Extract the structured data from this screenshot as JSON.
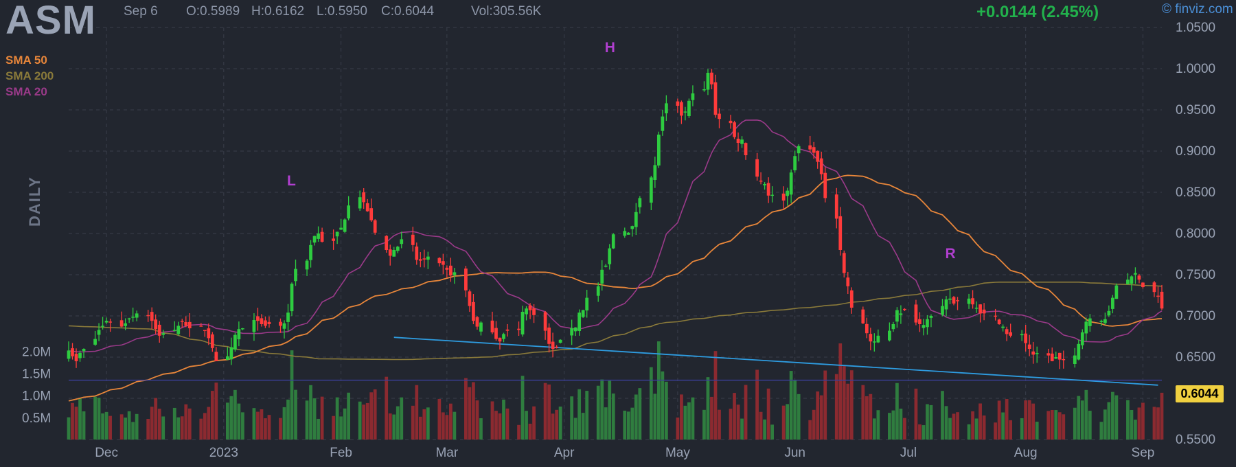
{
  "header": {
    "ticker": "ASM",
    "date": "Sep 6",
    "open": "O:0.5989",
    "high": "H:0.6162",
    "low": "L:0.5950",
    "close": "C:0.6044",
    "volume": "Vol:305.56K",
    "change": "+0.0144 (2.45%)",
    "credit": "© finviz.com"
  },
  "period_label": "DAILY",
  "last_price_label": "0.6044",
  "legend": [
    {
      "label": "SMA 50",
      "color": "#e8863a"
    },
    {
      "label": "SMA 200",
      "color": "#8a7a3a"
    },
    {
      "label": "SMA 20",
      "color": "#9b3a8a"
    }
  ],
  "colors": {
    "up": "#2ecc40",
    "down": "#ff3b3b",
    "vol_up": "#2f7d3f",
    "vol_down": "#8c2a30",
    "trendline": "#2e9ce0",
    "neckline": "#3b3f9a"
  },
  "chart_data": {
    "type": "candlestick",
    "x_axis_labels": [
      "Dec",
      "2023",
      "Feb",
      "Mar",
      "Apr",
      "May",
      "Jun",
      "Jul",
      "Aug",
      "Sep"
    ],
    "y_axis_labels": [
      "1.0500",
      "1.0000",
      "0.9500",
      "0.9000",
      "0.8500",
      "0.8000",
      "0.7500",
      "0.7000",
      "0.6500",
      "0.6000",
      "0.5500"
    ],
    "volume_axis_labels": [
      "2.0M",
      "1.5M",
      "1.0M",
      "0.5M"
    ],
    "ylim": [
      0.55,
      1.05
    ],
    "volume_lim": [
      0,
      2.8
    ],
    "date_range": [
      "2022-11-21",
      "2023-09-06"
    ],
    "closes": [
      0.658,
      0.651,
      0.645,
      0.655,
      0.66,
      0.672,
      0.683,
      0.688,
      0.694,
      0.692,
      0.687,
      0.691,
      0.697,
      0.699,
      0.703,
      0.7,
      0.694,
      0.684,
      0.676,
      0.679,
      0.683,
      0.688,
      0.693,
      0.688,
      0.685,
      0.688,
      0.682,
      0.673,
      0.661,
      0.645,
      0.651,
      0.662,
      0.677,
      0.684,
      0.685,
      0.695,
      0.694,
      0.69,
      0.688,
      0.69,
      0.688,
      0.691,
      0.704,
      0.739,
      0.757,
      0.767,
      0.786,
      0.797,
      0.8,
      0.79,
      0.791,
      0.802,
      0.807,
      0.817,
      0.834,
      0.844,
      0.838,
      0.827,
      0.816,
      0.801,
      0.78,
      0.773,
      0.78,
      0.784,
      0.793,
      0.786,
      0.768,
      0.767,
      0.769,
      0.772,
      0.764,
      0.762,
      0.756,
      0.749,
      0.753,
      0.731,
      0.712,
      0.694,
      0.687,
      0.692,
      0.68,
      0.672,
      0.669,
      0.678,
      0.682,
      0.683,
      0.705,
      0.709,
      0.707,
      0.701,
      0.682,
      0.666,
      0.66,
      0.662,
      0.671,
      0.685,
      0.686,
      0.704,
      0.707,
      0.722,
      0.736,
      0.756,
      0.761,
      0.782,
      0.799,
      0.803,
      0.801,
      0.809,
      0.826,
      0.843,
      0.868,
      0.883,
      0.92,
      0.942,
      0.958,
      0.955,
      0.943,
      0.948,
      0.961,
      0.97,
      0.975,
      0.995,
      0.981,
      0.944,
      0.939,
      0.934,
      0.917,
      0.91,
      0.914,
      0.895,
      0.869,
      0.863,
      0.86,
      0.846,
      0.847,
      0.84,
      0.852,
      0.874,
      0.894,
      0.906,
      0.902,
      0.898,
      0.887,
      0.872,
      0.843,
      0.818,
      0.78,
      0.752,
      0.736,
      0.71,
      0.691,
      0.679,
      0.669,
      0.669,
      0.676,
      0.682,
      0.69,
      0.707,
      0.703,
      0.708,
      0.692,
      0.69,
      0.689,
      0.696,
      0.7,
      0.712,
      0.72,
      0.721,
      0.715,
      0.719,
      0.721,
      0.714,
      0.71,
      0.703,
      0.703,
      0.7,
      0.69,
      0.687,
      0.678,
      0.676,
      0.678,
      0.667,
      0.66,
      0.653,
      0.655,
      0.652,
      0.645,
      0.65,
      0.647,
      0.647,
      0.652,
      0.666,
      0.68,
      0.693,
      0.697,
      0.694,
      0.696,
      0.706,
      0.722,
      0.737,
      0.744,
      0.748,
      0.752,
      0.744,
      0.735,
      0.729,
      0.724,
      0.709,
      0.695,
      0.692,
      0.688,
      0.697,
      0.707,
      0.723,
      0.727,
      0.728,
      0.733,
      0.731,
      0.723,
      0.717,
      0.716,
      0.708,
      0.698,
      0.689,
      0.681,
      0.677,
      0.67,
      0.671,
      0.669,
      0.666,
      0.673,
      0.684,
      0.683,
      0.697,
      0.695,
      0.691,
      0.675,
      0.659,
      0.652,
      0.65,
      0.645,
      0.642,
      0.638,
      0.636,
      0.624,
      0.604
    ],
    "sma20_start": [
      0.64,
      0.677
    ],
    "sma50_start": [
      0.574,
      0.618
    ],
    "sma200": [
      0.688,
      0.684,
      0.66,
      0.648,
      0.647,
      0.65,
      0.66,
      0.69,
      0.703,
      0.712,
      0.725,
      0.741,
      0.741,
      0.736
    ],
    "trendline": {
      "start": [
        "2023-02-15",
        0.674
      ],
      "end": [
        "2023-09-05",
        0.616
      ]
    },
    "neckline": 0.622,
    "annotations": [
      {
        "label": "L",
        "date": "2023-01-19",
        "price": 0.853
      },
      {
        "label": "H",
        "date": "2023-04-13",
        "price": 1.015
      },
      {
        "label": "R",
        "date": "2023-07-12",
        "price": 0.765
      }
    ]
  }
}
